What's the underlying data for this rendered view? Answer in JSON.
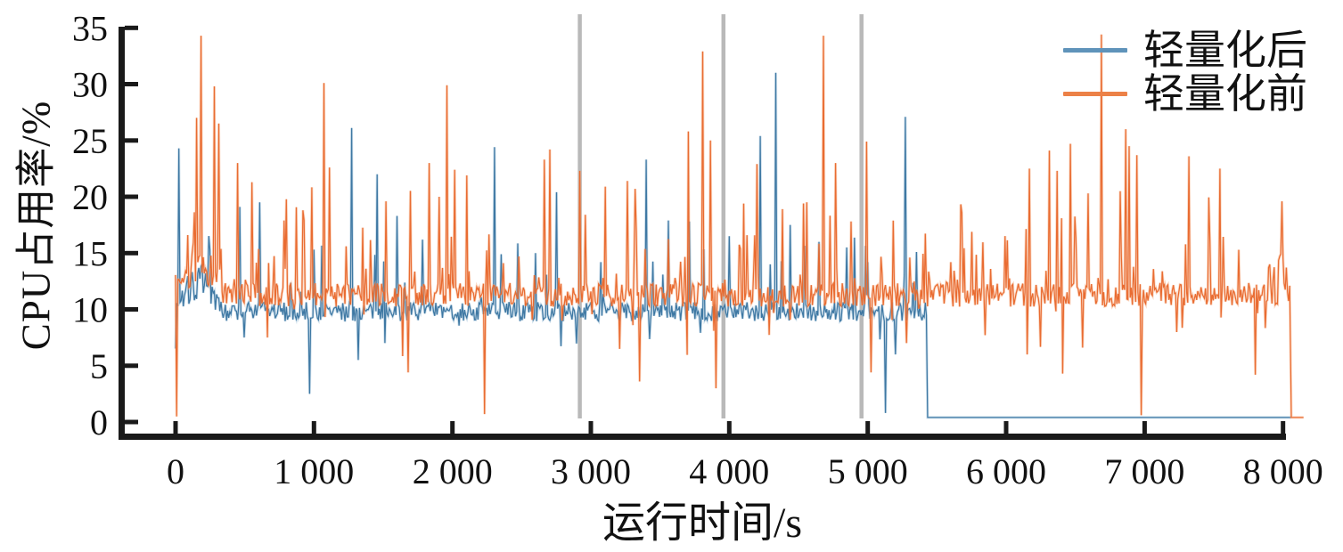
{
  "chart_data": {
    "type": "line",
    "title": "",
    "xlabel": "运行时间/s",
    "ylabel": "CPU占用率/%",
    "xlim": [
      -390,
      8160
    ],
    "ylim": [
      -1,
      36.5
    ],
    "grid": false,
    "legend_position": "top-right",
    "axis_color": "#1a1a1a",
    "tick_label_color": "#111111",
    "xticks": [
      {
        "value": 0,
        "label": "0"
      },
      {
        "value": 1000,
        "label": "1 000"
      },
      {
        "value": 2000,
        "label": "2 000"
      },
      {
        "value": 3000,
        "label": "3 000"
      },
      {
        "value": 4000,
        "label": "4 000"
      },
      {
        "value": 5000,
        "label": "5 000"
      },
      {
        "value": 6000,
        "label": "6 000"
      },
      {
        "value": 7000,
        "label": "7 000"
      },
      {
        "value": 8000,
        "label": "8 000"
      }
    ],
    "yticks": [
      {
        "value": 0,
        "label": "0"
      },
      {
        "value": 5,
        "label": "5"
      },
      {
        "value": 10,
        "label": "10"
      },
      {
        "value": 15,
        "label": "15"
      },
      {
        "value": 20,
        "label": "20"
      },
      {
        "value": 25,
        "label": "25"
      },
      {
        "value": 30,
        "label": "30"
      },
      {
        "value": 35,
        "label": "35"
      }
    ],
    "event_markers": {
      "color": "#b9b9b9",
      "x_values": [
        2920,
        3958,
        4955
      ]
    },
    "sampling_step_s": 8,
    "series": [
      {
        "name": "轻量化后",
        "color": "#36729f",
        "halo_color": "#8db4d2",
        "legend_color": "#5f93ba",
        "baseline": 9.8,
        "noise": 0.85,
        "spike_up_prob": 0.06,
        "spike_up_max": 6.0,
        "spike_down_prob": 0.03,
        "spike_down_max": 4.0,
        "seed": 7,
        "active_range": [
          0,
          5425
        ],
        "flat_segments": [
          {
            "from": 5433,
            "to": 8060,
            "value": 0.4
          }
        ],
        "major_spikes": [
          [
            20,
            24.3
          ],
          [
            460,
            19.1
          ],
          [
            610,
            19.5
          ],
          [
            1275,
            26.1
          ],
          [
            1456,
            22.0
          ],
          [
            1600,
            18.3
          ],
          [
            1780,
            16.2
          ],
          [
            2300,
            24.4
          ],
          [
            2350,
            14.9
          ],
          [
            2600,
            15.0
          ],
          [
            2750,
            20.4
          ],
          [
            3400,
            23.3
          ],
          [
            3560,
            17.9
          ],
          [
            3710,
            17.8
          ],
          [
            4225,
            25.4
          ],
          [
            4335,
            31.0
          ],
          [
            4440,
            17.5
          ],
          [
            4650,
            16.0
          ],
          [
            4850,
            15.5
          ],
          [
            5000,
            14.2
          ],
          [
            5275,
            27.1
          ],
          [
            5350,
            15.1
          ]
        ],
        "major_dips": [
          [
            965,
            2.5
          ],
          [
            1320,
            5.5
          ],
          [
            5130,
            0.8
          ],
          [
            5200,
            6.0
          ]
        ]
      },
      {
        "name": "轻量化前",
        "color": "#e8662a",
        "halo_color": "#f5a878",
        "legend_color": "#ec8147",
        "baseline": 11.3,
        "noise": 1.05,
        "spike_up_prob": 0.13,
        "spike_up_max": 8.0,
        "spike_down_prob": 0.04,
        "spike_down_max": 5.0,
        "seed": 13,
        "active_range": [
          0,
          8055
        ],
        "flat_segments": [
          {
            "from": 8060,
            "to": 8150,
            "value": 0.4
          }
        ],
        "major_spikes": [
          [
            150,
            27.0
          ],
          [
            185,
            34.3
          ],
          [
            277,
            29.8
          ],
          [
            310,
            26.5
          ],
          [
            450,
            23.0
          ],
          [
            554,
            21.3
          ],
          [
            780,
            17.9
          ],
          [
            920,
            18.8
          ],
          [
            1070,
            30.1
          ],
          [
            1115,
            22.6
          ],
          [
            1520,
            19.6
          ],
          [
            1835,
            23.0
          ],
          [
            1905,
            20.0
          ],
          [
            1960,
            29.9
          ],
          [
            2015,
            22.4
          ],
          [
            2105,
            21.9
          ],
          [
            2660,
            23.3
          ],
          [
            2700,
            24.2
          ],
          [
            2920,
            22.3
          ],
          [
            2960,
            18.4
          ],
          [
            3100,
            20.9
          ],
          [
            3260,
            21.4
          ],
          [
            3320,
            20.7
          ],
          [
            3700,
            25.8
          ],
          [
            3810,
            32.9
          ],
          [
            3860,
            25.0
          ],
          [
            4100,
            19.4
          ],
          [
            4200,
            22.9
          ],
          [
            4380,
            18.9
          ],
          [
            4680,
            34.3
          ],
          [
            4770,
            23.0
          ],
          [
            4990,
            24.9
          ],
          [
            5300,
            14.6
          ],
          [
            5600,
            14.2
          ],
          [
            5890,
            13.6
          ],
          [
            6170,
            22.5
          ],
          [
            6310,
            24.1
          ],
          [
            6365,
            22.3
          ],
          [
            6465,
            24.7
          ],
          [
            6590,
            20.3
          ],
          [
            6690,
            34.4
          ],
          [
            6860,
            26.0
          ],
          [
            6885,
            24.5
          ],
          [
            6945,
            23.7
          ],
          [
            7320,
            23.6
          ],
          [
            7545,
            22.5
          ],
          [
            7680,
            15.3
          ],
          [
            7905,
            14.0
          ],
          [
            7990,
            19.6
          ]
        ],
        "major_dips": [
          [
            10,
            0.5
          ],
          [
            1680,
            4.4
          ],
          [
            2230,
            0.7
          ],
          [
            3350,
            3.6
          ],
          [
            3900,
            3.0
          ],
          [
            5025,
            4.4
          ],
          [
            6150,
            6.0
          ],
          [
            6410,
            4.3
          ],
          [
            6975,
            0.6
          ],
          [
            7800,
            4.2
          ]
        ]
      }
    ]
  }
}
